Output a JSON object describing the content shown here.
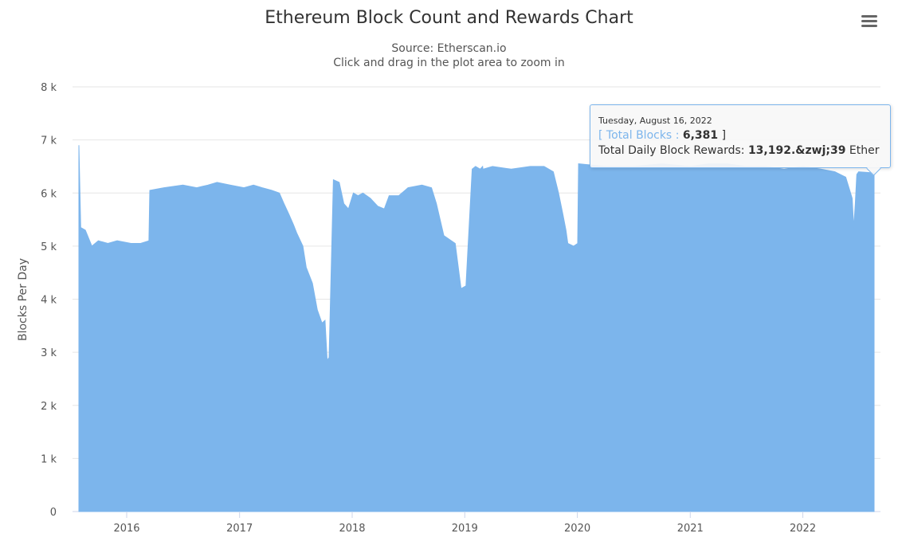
{
  "header": {
    "title": "Ethereum Block Count and Rewards Chart",
    "source": "Source: Etherscan.io",
    "hint": "Click and drag in the plot area to zoom in"
  },
  "tooltip": {
    "date": "Tuesday, August 16, 2022",
    "open_bracket": "[",
    "series_name": "Total Blocks",
    "sep": ":",
    "value": "6,381",
    "close_bracket": "]",
    "rewards_label": "Total Daily Block Rewards:",
    "rewards_value": "13,192.&zwj;39",
    "rewards_unit": "Ether"
  },
  "chart_data": {
    "type": "area",
    "title": "Ethereum Block Count and Rewards Chart",
    "subtitle": "Source: Etherscan.io",
    "ylabel": "Blocks Per Day",
    "xlabel": "",
    "ylim": [
      0,
      8000
    ],
    "xlim": [
      "2015-07-30",
      "2022-08-20"
    ],
    "yticks": [
      0,
      1000,
      2000,
      3000,
      4000,
      5000,
      6000,
      7000,
      8000
    ],
    "ytick_labels": [
      "0",
      "1 k",
      "2 k",
      "3 k",
      "4 k",
      "5 k",
      "6 k",
      "7 k",
      "8 k"
    ],
    "xticks": [
      "2016-01-01",
      "2017-01-01",
      "2018-01-01",
      "2019-01-01",
      "2020-01-01",
      "2021-01-01",
      "2022-01-01"
    ],
    "xtick_labels": [
      "2016",
      "2017",
      "2018",
      "2019",
      "2020",
      "2021",
      "2022"
    ],
    "grid": true,
    "legend": "none",
    "series": [
      {
        "name": "Total Blocks",
        "color": "#7cb5ec",
        "x": [
          "2015-07-30",
          "2015-08-05",
          "2015-08-20",
          "2015-09-10",
          "2015-10-01",
          "2015-11-01",
          "2015-12-01",
          "2016-01-15",
          "2016-02-15",
          "2016-03-13",
          "2016-03-16",
          "2016-05-01",
          "2016-07-01",
          "2016-08-15",
          "2016-09-20",
          "2016-10-20",
          "2016-12-01",
          "2017-01-15",
          "2017-02-15",
          "2017-03-15",
          "2017-04-15",
          "2017-05-10",
          "2017-05-25",
          "2017-06-10",
          "2017-06-25",
          "2017-07-05",
          "2017-07-25",
          "2017-08-05",
          "2017-08-25",
          "2017-09-10",
          "2017-09-25",
          "2017-10-05",
          "2017-10-12",
          "2017-10-18",
          "2017-11-01",
          "2017-11-20",
          "2017-12-05",
          "2017-12-20",
          "2018-01-05",
          "2018-01-20",
          "2018-02-05",
          "2018-03-01",
          "2018-03-25",
          "2018-04-15",
          "2018-05-01",
          "2018-06-01",
          "2018-07-01",
          "2018-08-15",
          "2018-09-15",
          "2018-10-01",
          "2018-10-25",
          "2018-12-01",
          "2018-12-20",
          "2019-01-05",
          "2019-01-25",
          "2019-02-05",
          "2019-02-20",
          "2019-02-28",
          "2019-03-01",
          "2019-04-01",
          "2019-06-01",
          "2019-08-01",
          "2019-09-15",
          "2019-10-15",
          "2019-11-01",
          "2019-11-15",
          "2019-11-25",
          "2019-12-01",
          "2019-12-20",
          "2020-01-02",
          "2020-01-05",
          "2020-04-01",
          "2020-07-01",
          "2020-10-01",
          "2021-01-01",
          "2021-03-01",
          "2021-05-01",
          "2021-07-01",
          "2021-09-01",
          "2021-11-01",
          "2022-01-01",
          "2022-03-01",
          "2022-04-15",
          "2022-05-20",
          "2022-06-10",
          "2022-06-15",
          "2022-06-20",
          "2022-06-25",
          "2022-07-01",
          "2022-08-16",
          "2022-08-20"
        ],
        "y": [
          6900,
          5350,
          5300,
          5000,
          5100,
          5050,
          5100,
          5050,
          5050,
          5100,
          6050,
          6100,
          6150,
          6100,
          6150,
          6200,
          6150,
          6100,
          6150,
          6100,
          6050,
          6000,
          5800,
          5600,
          5400,
          5250,
          5000,
          4600,
          4300,
          3800,
          3550,
          3600,
          2850,
          2900,
          6250,
          6200,
          5800,
          5700,
          6000,
          5950,
          6000,
          5900,
          5750,
          5700,
          5950,
          5950,
          6100,
          6150,
          6100,
          5800,
          5200,
          5050,
          4200,
          4250,
          6450,
          6500,
          6450,
          6500,
          6450,
          6500,
          6450,
          6500,
          6500,
          6400,
          6000,
          5600,
          5300,
          5050,
          5000,
          5050,
          6550,
          6500,
          6500,
          6550,
          6500,
          6550,
          6550,
          6500,
          6500,
          6450,
          6500,
          6450,
          6400,
          6300,
          5900,
          5350,
          5800,
          6350,
          6400,
          6381,
          6400
        ]
      }
    ]
  }
}
